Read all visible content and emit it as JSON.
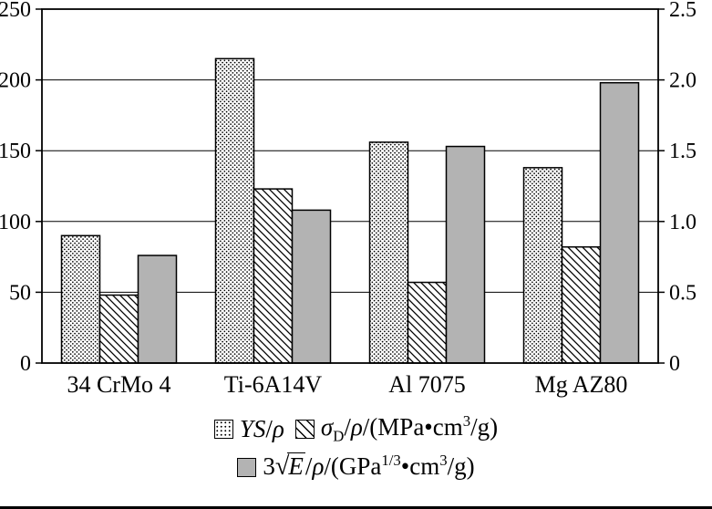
{
  "chart_data": {
    "type": "bar",
    "title": "",
    "categories": [
      "34 CrMo 4",
      "Ti-6A14V",
      "Al 7075",
      "Mg AZ80"
    ],
    "series": [
      {
        "name": "YS/ρ",
        "axis": "left",
        "pattern": "dots",
        "values": [
          90,
          215,
          156,
          138
        ]
      },
      {
        "name": "σD/ρ/(MPa•cm3/g)",
        "axis": "left",
        "pattern": "hatch",
        "values": [
          48,
          123,
          57,
          82
        ]
      },
      {
        "name": "3√E/ρ/(GPa1/3•cm3/g)",
        "axis": "right",
        "pattern": "gray",
        "values": [
          0.76,
          1.08,
          1.53,
          1.98
        ]
      }
    ],
    "left_axis": {
      "min": 0,
      "max": 250,
      "step": 50,
      "ticks": [
        "0",
        "50",
        "100",
        "150",
        "200",
        "250"
      ]
    },
    "right_axis": {
      "min": 0,
      "max": 2.5,
      "step": 0.5,
      "ticks": [
        "0",
        "0.5",
        "1.0",
        "1.5",
        "2.0",
        "2.5"
      ]
    },
    "grid": true,
    "legend_position": "bottom",
    "colors": {
      "gray_fill": "#b3b3b3",
      "bar_stroke": "#000000",
      "background": "#ffffff"
    }
  },
  "legend": {
    "item1": {
      "var": "YS",
      "slash": "/",
      "rho": "ρ"
    },
    "item2": {
      "sigma": "σ",
      "sub": "D",
      "slash1": "/",
      "rho": "ρ",
      "rest1": "/(MPa",
      "dot": "•",
      "unit": "cm",
      "sup": "3",
      "rest2": "/g)"
    },
    "item3": {
      "prefix": "3",
      "radical": "√",
      "evar": "E",
      "slash1": "/",
      "rho": "ρ",
      "rest1": "/(GPa",
      "sup1": "1/3",
      "dot": "•",
      "unit": "cm",
      "sup2": "3",
      "rest2": "/g)"
    }
  }
}
